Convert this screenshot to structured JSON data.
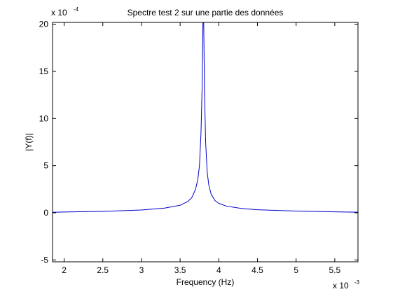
{
  "chart_data": {
    "type": "line",
    "title": "Spectre test 2 sur une partie des données",
    "xlabel": "Frequency (Hz)",
    "ylabel": "|Y(f)|",
    "x_multiplier": {
      "base": "x 10",
      "exponent": "-3"
    },
    "y_multiplier": {
      "base": "x 10",
      "exponent": "-4"
    },
    "xlim": [
      1.85,
      5.8
    ],
    "ylim": [
      -5.2,
      20.2
    ],
    "xticks": [
      2,
      2.5,
      3,
      3.5,
      4,
      4.5,
      5,
      5.5
    ],
    "xtick_labels": [
      "2",
      "2.5",
      "3",
      "3.5",
      "4",
      "4.5",
      "5",
      "5.5"
    ],
    "yticks": [
      -5,
      0,
      5,
      10,
      15,
      20
    ],
    "ytick_labels": [
      "-5",
      "0",
      "5",
      "10",
      "15",
      "20"
    ],
    "grid": false,
    "series": [
      {
        "color": "#0000cc",
        "x": [
          1.85,
          2.0,
          2.5,
          3.0,
          3.3,
          3.5,
          3.6,
          3.65,
          3.7,
          3.73,
          3.75,
          3.77,
          3.785,
          3.795,
          3.8,
          3.805,
          3.815,
          3.83,
          3.85,
          3.87,
          3.9,
          3.95,
          4.0,
          4.1,
          4.3,
          4.5,
          5.0,
          5.5,
          5.8
        ],
        "y": [
          0.05,
          0.08,
          0.15,
          0.3,
          0.5,
          0.8,
          1.2,
          1.6,
          2.5,
          3.6,
          5.0,
          8.5,
          13.5,
          20.2,
          20.2,
          20.2,
          13.0,
          7.5,
          4.3,
          3.0,
          2.0,
          1.3,
          1.0,
          0.7,
          0.45,
          0.32,
          0.18,
          0.1,
          0.06
        ]
      }
    ]
  }
}
